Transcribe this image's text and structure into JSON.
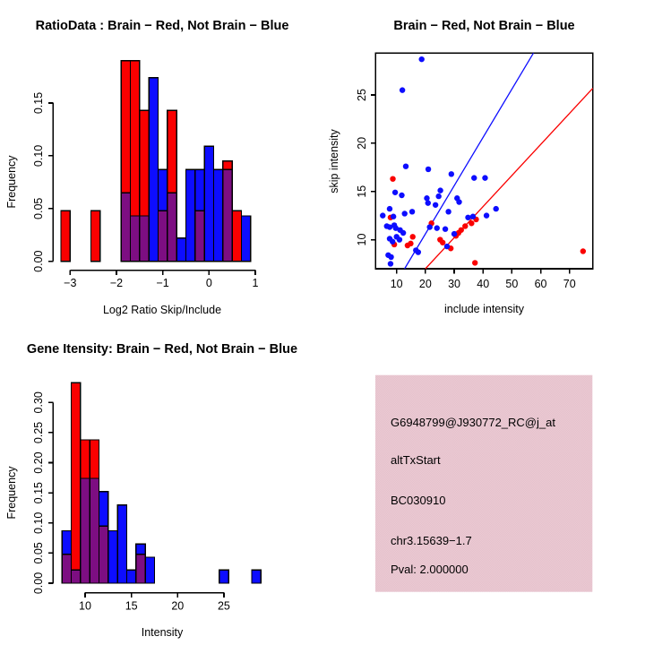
{
  "window": {
    "label": "R graphics output, 2x2 plot grid"
  },
  "palette": {
    "red": "#fa0000",
    "blue": "#0d0dff",
    "overlap_purple": "#7d0e82",
    "dark_red": "#931419",
    "panel_pink": "#eec9d2",
    "panel_pink_alt": "#e2c2cd",
    "black": "#000000",
    "background": "#ffffff"
  },
  "chart_data": [
    {
      "id": "ratio_hist",
      "type": "bar",
      "title": "RatioData : Brain − Red, Not Brain − Blue",
      "xlabel": "Log2 Ratio Skip/Include",
      "ylabel": "Frequency",
      "x_ticks": [
        -3,
        -2,
        -1,
        0,
        1
      ],
      "x_tick_labels": [
        "−3",
        "−2",
        "−1",
        "0",
        "1"
      ],
      "y_ticks": [
        0,
        0.05,
        0.1,
        0.15
      ],
      "y_tick_labels": [
        "0.00",
        "0.05",
        "0.10",
        "0.15"
      ],
      "xlim": [
        -3.3,
        1.2
      ],
      "ylim": [
        0,
        0.19
      ],
      "bin_width": 0.2,
      "series": [
        {
          "name": "Brain",
          "color": "red",
          "bars": [
            [
              -3.1,
              0.048
            ],
            [
              -2.45,
              0.048
            ],
            [
              -1.8,
              0.19
            ],
            [
              -1.6,
              0.19
            ],
            [
              -1.4,
              0.143
            ],
            [
              -1,
              0.048
            ],
            [
              -0.8,
              0.143
            ],
            [
              -0.2,
              0.048
            ],
            [
              0.4,
              0.095
            ],
            [
              0.6,
              0.048
            ]
          ]
        },
        {
          "name": "Not Brain",
          "color": "blue",
          "bars": [
            [
              -1.8,
              0.065
            ],
            [
              -1.6,
              0.043
            ],
            [
              -1.4,
              0.043
            ],
            [
              -1.2,
              0.174
            ],
            [
              -1,
              0.087
            ],
            [
              -0.8,
              0.065
            ],
            [
              -0.6,
              0.022
            ],
            [
              -0.4,
              0.087
            ],
            [
              -0.2,
              0.087
            ],
            [
              0,
              0.109
            ],
            [
              0.2,
              0.087
            ],
            [
              0.4,
              0.087
            ],
            [
              0.8,
              0.043
            ]
          ]
        }
      ]
    },
    {
      "id": "intensity_scatter",
      "type": "scatter",
      "title": "Brain − Red, Not Brain − Blue",
      "xlabel": "include intensity",
      "ylabel": "skip intensity",
      "x_ticks": [
        10,
        20,
        30,
        40,
        50,
        60,
        70
      ],
      "x_tick_labels": [
        "10",
        "20",
        "30",
        "40",
        "50",
        "60",
        "70"
      ],
      "y_ticks": [
        10,
        15,
        20,
        25
      ],
      "y_tick_labels": [
        "10",
        "15",
        "20",
        "25"
      ],
      "xlim": [
        2.7,
        78.1
      ],
      "ylim": [
        7.0,
        29.3
      ],
      "series": [
        {
          "name": "Brain",
          "color": "red",
          "points": [
            [
              8.7,
              16.3
            ],
            [
              7.9,
              12.3
            ],
            [
              9.2,
              9.5
            ],
            [
              13.8,
              9.4
            ],
            [
              14.9,
              9.6
            ],
            [
              15.6,
              10.3
            ],
            [
              22.1,
              11.7
            ],
            [
              25.1,
              10
            ],
            [
              26,
              9.7
            ],
            [
              28.8,
              9.1
            ],
            [
              30.6,
              10.4
            ],
            [
              31.5,
              10.7
            ],
            [
              32.4,
              11
            ],
            [
              33.8,
              11.4
            ],
            [
              36,
              11.7
            ],
            [
              37.6,
              12.1
            ],
            [
              37.2,
              7.6
            ],
            [
              74.7,
              8.8
            ]
          ]
        },
        {
          "name": "Not Brain",
          "color": "blue",
          "points": [
            [
              18.7,
              28.7
            ],
            [
              12,
              25.5
            ],
            [
              13.2,
              17.6
            ],
            [
              21,
              17.3
            ],
            [
              29,
              16.8
            ],
            [
              36.9,
              16.4
            ],
            [
              40.7,
              16.4
            ],
            [
              9.5,
              14.9
            ],
            [
              11.8,
              14.6
            ],
            [
              25.2,
              15.1
            ],
            [
              20.5,
              14.3
            ],
            [
              24.6,
              14.5
            ],
            [
              20.9,
              13.8
            ],
            [
              23.5,
              13.6
            ],
            [
              28,
              12.9
            ],
            [
              31,
              14.3
            ],
            [
              31.7,
              13.9
            ],
            [
              5.2,
              12.5
            ],
            [
              7.6,
              13.2
            ],
            [
              8.9,
              12.4
            ],
            [
              12.8,
              12.7
            ],
            [
              15.4,
              12.9
            ],
            [
              44.5,
              13.2
            ],
            [
              41.2,
              12.5
            ],
            [
              6.6,
              11.4
            ],
            [
              7.6,
              11.3
            ],
            [
              9.2,
              11.5
            ],
            [
              9.7,
              11.2
            ],
            [
              11.2,
              11
            ],
            [
              12.3,
              10.7
            ],
            [
              10,
              10.3
            ],
            [
              11,
              10
            ],
            [
              21.5,
              11.3
            ],
            [
              24,
              11.2
            ],
            [
              26.9,
              11.1
            ],
            [
              30,
              10.6
            ],
            [
              34.8,
              12.3
            ],
            [
              36.5,
              12.4
            ],
            [
              7.6,
              10.1
            ],
            [
              8.6,
              9.8
            ],
            [
              16.7,
              8.9
            ],
            [
              17.5,
              8.7
            ],
            [
              27.5,
              9.3
            ],
            [
              7.1,
              8.4
            ],
            [
              8.1,
              8.2
            ],
            [
              7.9,
              7.5
            ]
          ]
        }
      ],
      "fit_lines": [
        {
          "series": "Not Brain",
          "color": "blue",
          "slope": 0.5,
          "intercept": 0.6
        },
        {
          "series": "Brain",
          "color": "red",
          "slope": 0.322,
          "intercept": 0.55
        }
      ]
    },
    {
      "id": "gene_hist",
      "type": "bar",
      "title": "Gene Itensity: Brain − Red, Not Brain − Blue",
      "xlabel": "Intensity",
      "ylabel": "Frequency",
      "x_ticks": [
        10,
        15,
        20,
        25
      ],
      "x_tick_labels": [
        "10",
        "15",
        "20",
        "25"
      ],
      "y_ticks": [
        0,
        0.05,
        0.1,
        0.15,
        0.2,
        0.25,
        0.3
      ],
      "y_tick_labels": [
        "0.00",
        "0.05",
        "0.10",
        "0.15",
        "0.20",
        "0.25",
        "0.30"
      ],
      "xlim": [
        7,
        29.5
      ],
      "ylim": [
        0,
        0.333
      ],
      "bin_width": 1,
      "series": [
        {
          "name": "Brain",
          "color": "red",
          "bars": [
            [
              8,
              0.048
            ],
            [
              9,
              0.333
            ],
            [
              10,
              0.238
            ],
            [
              11,
              0.238
            ],
            [
              12,
              0.095
            ],
            [
              16,
              0.048
            ]
          ]
        },
        {
          "name": "Not Brain",
          "color": "blue",
          "bars": [
            [
              8,
              0.087
            ],
            [
              9,
              0.022
            ],
            [
              10,
              0.174
            ],
            [
              11,
              0.174
            ],
            [
              12,
              0.152
            ],
            [
              13,
              0.087
            ],
            [
              14,
              0.13
            ],
            [
              15,
              0.022
            ],
            [
              16,
              0.065
            ],
            [
              17,
              0.043
            ],
            [
              25,
              0.022
            ],
            [
              28.5,
              0.022
            ]
          ]
        }
      ]
    },
    {
      "id": "info_panel",
      "type": "text",
      "background": "panel_pink",
      "lines": [
        {
          "text": "G6948799@J930772_RC@j_at",
          "color": "black"
        },
        {
          "text": "altTxStart",
          "color": "black"
        },
        {
          "text": "BC030910",
          "color": "black"
        },
        {
          "text": "chr3.15639−1.7",
          "color": "black"
        },
        {
          "text": "Pval: 2.000000",
          "color": "dark_red"
        }
      ]
    }
  ]
}
